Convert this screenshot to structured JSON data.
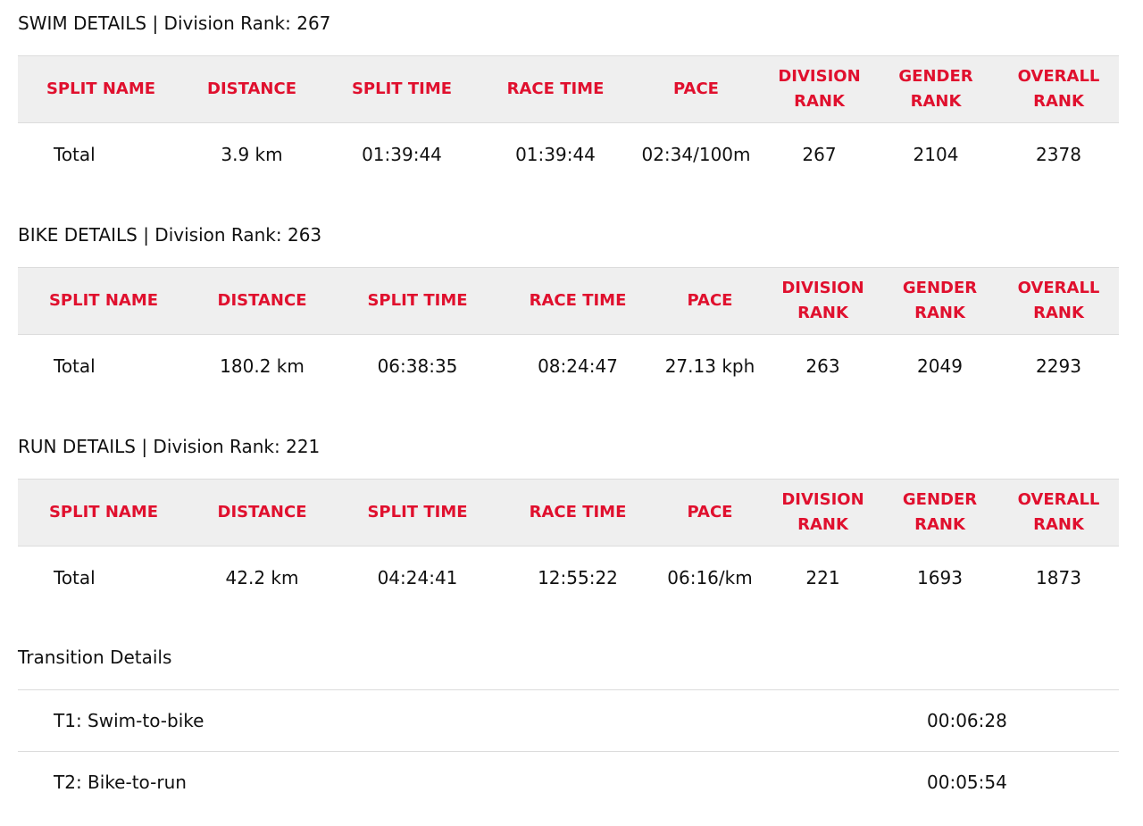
{
  "sections": [
    {
      "id": "swim",
      "title": "SWIM DETAILS | Division Rank: 267",
      "columns": [
        "SPLIT NAME",
        "DISTANCE",
        "SPLIT TIME",
        "RACE TIME",
        "PACE",
        "DIVISION RANK",
        "GENDER RANK",
        "OVERALL RANK"
      ],
      "rows": [
        [
          "Total",
          "3.9 km",
          "01:39:44",
          "01:39:44",
          "02:34/100m",
          "267",
          "2104",
          "2378"
        ]
      ]
    },
    {
      "id": "bike",
      "title": "BIKE DETAILS | Division Rank: 263",
      "columns": [
        "SPLIT NAME",
        "DISTANCE",
        "SPLIT TIME",
        "RACE TIME",
        "PACE",
        "DIVISION RANK",
        "GENDER RANK",
        "OVERALL RANK"
      ],
      "rows": [
        [
          "Total",
          "180.2 km",
          "06:38:35",
          "08:24:47",
          "27.13 kph",
          "263",
          "2049",
          "2293"
        ]
      ]
    },
    {
      "id": "run",
      "title": "RUN DETAILS | Division Rank: 221",
      "columns": [
        "SPLIT NAME",
        "DISTANCE",
        "SPLIT TIME",
        "RACE TIME",
        "PACE",
        "DIVISION RANK",
        "GENDER RANK",
        "OVERALL RANK"
      ],
      "rows": [
        [
          "Total",
          "42.2 km",
          "04:24:41",
          "12:55:22",
          "06:16/km",
          "221",
          "1693",
          "1873"
        ]
      ]
    }
  ],
  "transitions": {
    "title": "Transition Details",
    "items": [
      {
        "name": "T1: Swim-to-bike",
        "time": "00:06:28"
      },
      {
        "name": "T2: Bike-to-run",
        "time": "00:05:54"
      }
    ]
  },
  "colors": {
    "header_text": "#e0102e",
    "header_bg": "#efefef",
    "divider": "#dcdcdc"
  }
}
